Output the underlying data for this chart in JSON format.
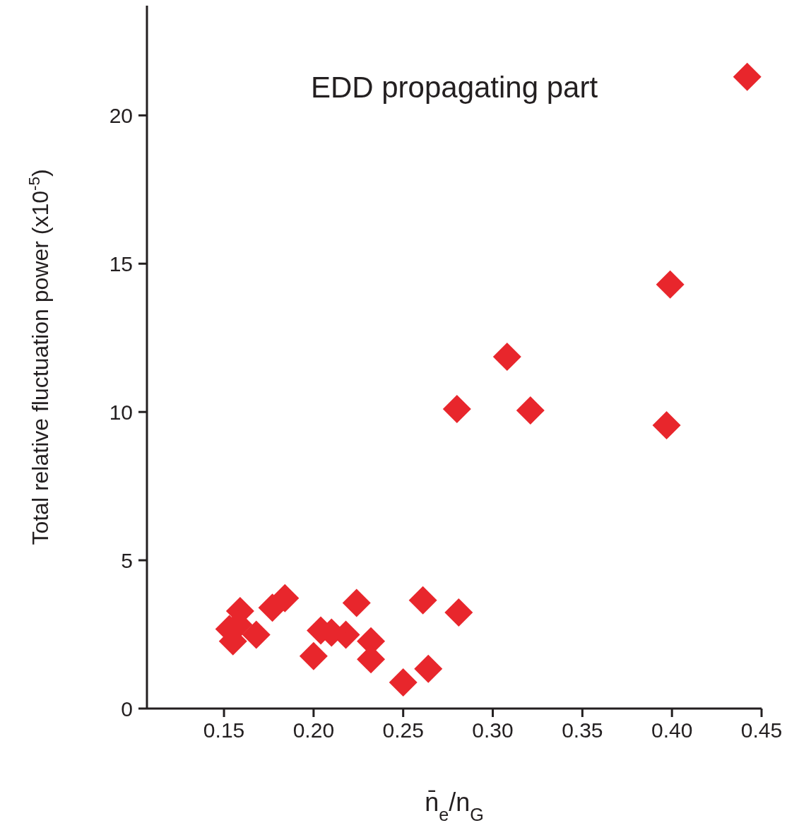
{
  "chart_data": {
    "type": "scatter",
    "title": "EDD propagating part",
    "xlabel": "n̄$_{e}$/n$_{G}$",
    "ylabel": "Total relative fluctuation power (x10$^{-5}$)",
    "x": [
      0.442,
      0.399,
      0.397,
      0.308,
      0.28,
      0.321,
      0.281,
      0.261,
      0.264,
      0.25,
      0.224,
      0.232,
      0.232,
      0.218,
      0.21,
      0.204,
      0.2,
      0.184,
      0.177,
      0.159,
      0.158,
      0.153,
      0.155,
      0.168
    ],
    "values": [
      21.3,
      14.3,
      9.55,
      11.86,
      10.1,
      10.05,
      3.24,
      3.65,
      1.34,
      0.88,
      3.56,
      2.27,
      1.66,
      2.49,
      2.56,
      2.63,
      1.77,
      3.72,
      3.4,
      3.29,
      2.83,
      2.68,
      2.27,
      2.49
    ],
    "color": "#e8262c",
    "marker": "diamond",
    "xlim": [
      0.107,
      0.45
    ],
    "ylim": [
      0,
      23.7
    ],
    "xticks": [
      {
        "value": 0.15,
        "label": "0.15"
      },
      {
        "value": 0.2,
        "label": "0.20"
      },
      {
        "value": 0.25,
        "label": "0.25"
      },
      {
        "value": 0.3,
        "label": "0.30"
      },
      {
        "value": 0.35,
        "label": "0.35"
      },
      {
        "value": 0.4,
        "label": "0.40"
      },
      {
        "value": 0.45,
        "label": "0.45"
      }
    ],
    "yticks": [
      0,
      5,
      10,
      15,
      20
    ],
    "grid": false
  }
}
